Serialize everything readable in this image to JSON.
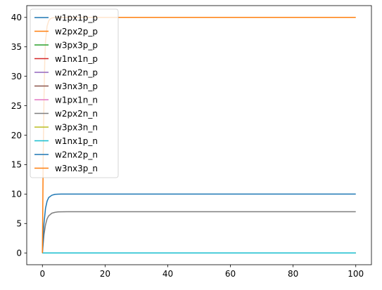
{
  "chart_data": {
    "type": "line",
    "title": "",
    "xlabel": "",
    "ylabel": "",
    "xlim": [
      -5,
      105
    ],
    "ylim": [
      -2,
      42
    ],
    "xticks": [
      0,
      20,
      40,
      60,
      80,
      100
    ],
    "yticks": [
      0,
      5,
      10,
      15,
      20,
      25,
      30,
      35,
      40
    ],
    "xtick_labels": [
      "0",
      "20",
      "40",
      "60",
      "80",
      "100"
    ],
    "ytick_labels": [
      "0",
      "5",
      "10",
      "15",
      "20",
      "25",
      "30",
      "35",
      "40"
    ],
    "legend_position": "top-left",
    "grid": false,
    "series": [
      {
        "name": "w1px1p_p",
        "color": "#1f77b4",
        "x": [
          0,
          100
        ],
        "y": [
          0,
          0
        ]
      },
      {
        "name": "w2px2p_p",
        "color": "#ff7f0e",
        "x": [
          0,
          100
        ],
        "y": [
          0,
          0
        ]
      },
      {
        "name": "w3px3p_p",
        "color": "#2ca02c",
        "x": [
          0,
          100
        ],
        "y": [
          0,
          0
        ]
      },
      {
        "name": "w1nx1n_p",
        "color": "#d62728",
        "x": [
          0,
          100
        ],
        "y": [
          0,
          0
        ]
      },
      {
        "name": "w2nx2n_p",
        "color": "#9467bd",
        "x": [
          0,
          100
        ],
        "y": [
          0,
          0
        ]
      },
      {
        "name": "w3nx3n_p",
        "color": "#8c564b",
        "x": [
          0,
          100
        ],
        "y": [
          0,
          0
        ]
      },
      {
        "name": "w1px1n_n",
        "color": "#e377c2",
        "x": [
          0,
          100
        ],
        "y": [
          0,
          0
        ]
      },
      {
        "name": "w2px2n_n",
        "color": "#7f7f7f",
        "x": [
          0,
          0.5,
          1,
          1.5,
          2,
          3,
          4,
          5,
          6,
          8,
          10,
          100
        ],
        "y": [
          0,
          3.1,
          4.8,
          5.8,
          6.3,
          6.75,
          6.9,
          6.97,
          6.99,
          7.0,
          7.0,
          7.0
        ]
      },
      {
        "name": "w3px3n_n",
        "color": "#bcbd22",
        "x": [
          0,
          100
        ],
        "y": [
          0,
          0
        ]
      },
      {
        "name": "w1nx1p_n",
        "color": "#17becf",
        "x": [
          0,
          100
        ],
        "y": [
          0,
          0
        ]
      },
      {
        "name": "w2nx2p_n",
        "color": "#1f77b4",
        "x": [
          0,
          0.5,
          1,
          1.5,
          2,
          3,
          4,
          5,
          6,
          8,
          10,
          100
        ],
        "y": [
          0,
          5.0,
          7.6,
          8.8,
          9.4,
          9.8,
          9.95,
          9.99,
          10.0,
          10.0,
          10.0,
          10.0
        ]
      },
      {
        "name": "w3nx3p_n",
        "color": "#ff7f0e",
        "x": [
          0,
          0.25,
          0.5,
          0.75,
          1,
          1.5,
          2,
          2.5,
          3,
          4,
          5,
          6,
          8,
          100
        ],
        "y": [
          0,
          16,
          26,
          32.5,
          36,
          38.5,
          39.4,
          39.75,
          39.9,
          39.98,
          40.0,
          40.0,
          40.0,
          40.0
        ]
      }
    ]
  }
}
